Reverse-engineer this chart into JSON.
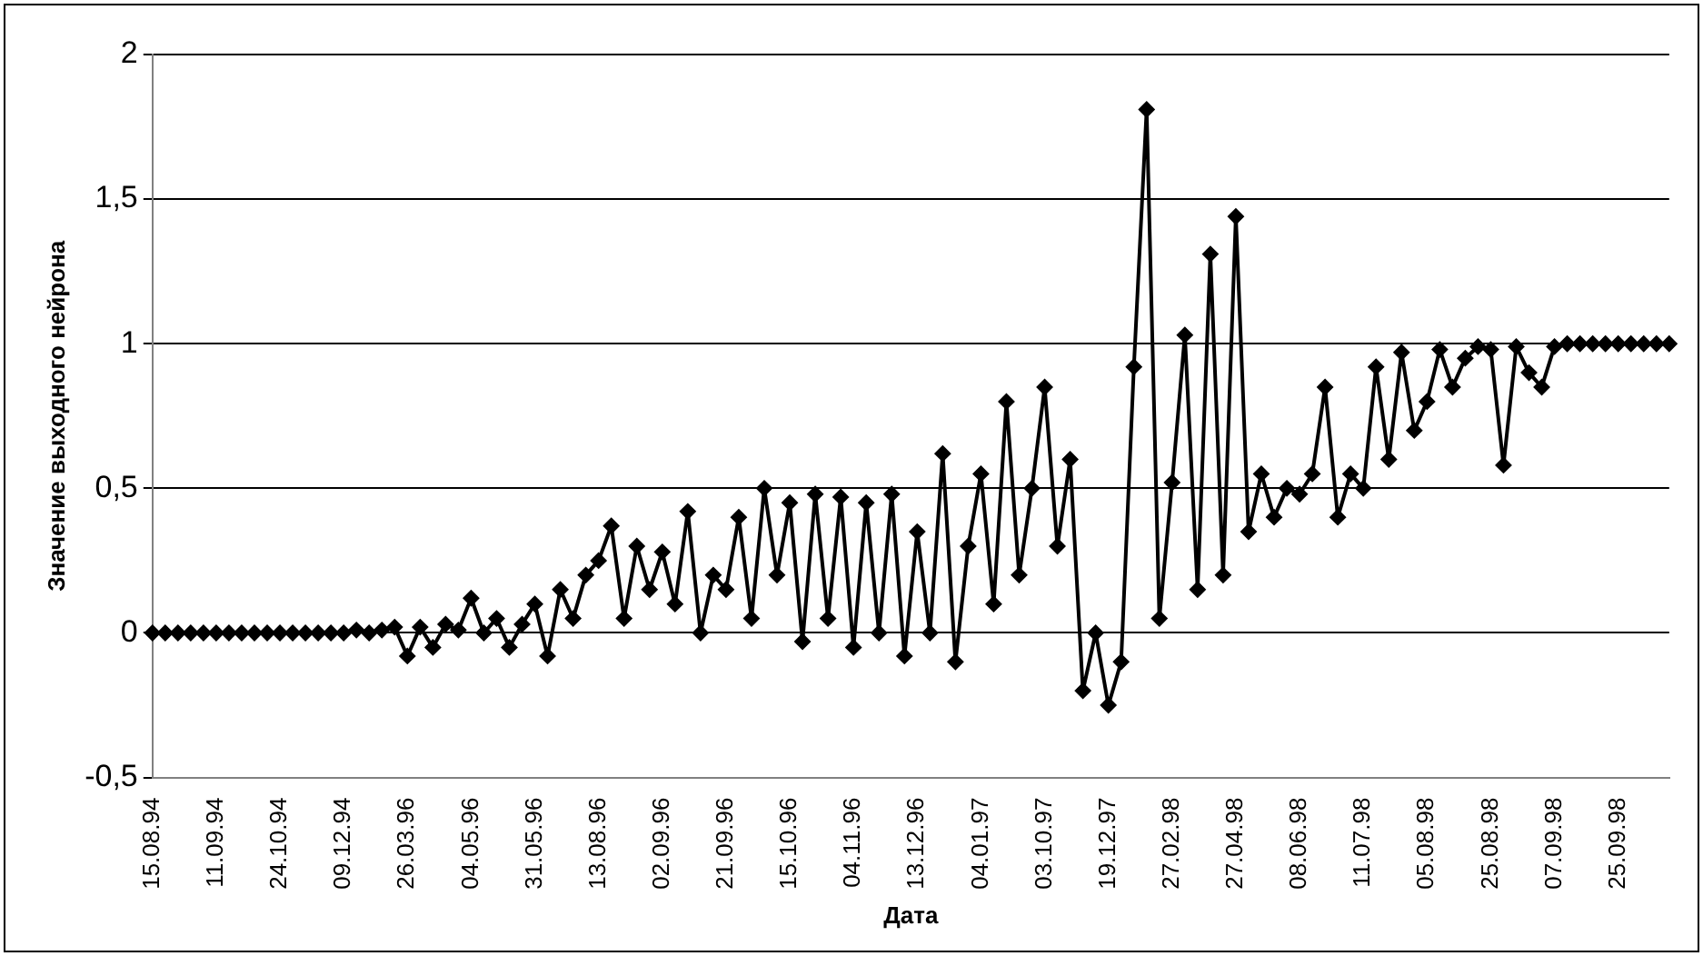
{
  "chart_data": {
    "type": "line",
    "xlabel": "Дата",
    "ylabel": "Значение выходного нейрона",
    "categories": [
      "15.08.94",
      null,
      null,
      null,
      null,
      "11.09.94",
      null,
      null,
      null,
      null,
      "24.10.94",
      null,
      null,
      null,
      null,
      "09.12.94",
      null,
      null,
      null,
      null,
      "26.03.96",
      null,
      null,
      null,
      null,
      "04.05.96",
      null,
      null,
      null,
      null,
      "31.05.96",
      null,
      null,
      null,
      null,
      "13.08.96",
      null,
      null,
      null,
      null,
      "02.09.96",
      null,
      null,
      null,
      null,
      "21.09.96",
      null,
      null,
      null,
      null,
      "15.10.96",
      null,
      null,
      null,
      null,
      "04.11.96",
      null,
      null,
      null,
      null,
      "13.12.96",
      null,
      null,
      null,
      null,
      "04.01.97",
      null,
      null,
      null,
      null,
      "03.10.97",
      null,
      null,
      null,
      null,
      "19.12.97",
      null,
      null,
      null,
      null,
      "27.02.98",
      null,
      null,
      null,
      null,
      "27.04.98",
      null,
      null,
      null,
      null,
      "08.06.98",
      null,
      null,
      null,
      null,
      "11.07.98",
      null,
      null,
      null,
      null,
      "05.08.98",
      null,
      null,
      null,
      null,
      "25.08.98",
      null,
      null,
      null,
      null,
      "07.09.98",
      null,
      null,
      null,
      null,
      "25.09.98",
      null,
      null,
      null,
      null
    ],
    "series": [
      {
        "color": "#000000",
        "values": [
          0,
          0,
          0,
          0,
          0,
          0,
          0,
          0,
          0,
          0,
          0,
          0,
          0,
          0,
          0,
          0,
          0.01,
          0,
          0.01,
          0.02,
          -0.08,
          0.02,
          -0.05,
          0.03,
          0.01,
          0.12,
          0,
          0.05,
          -0.05,
          0.03,
          0.1,
          -0.08,
          0.15,
          0.05,
          0.2,
          0.25,
          0.37,
          0.05,
          0.3,
          0.15,
          0.28,
          0.1,
          0.42,
          0,
          0.2,
          0.15,
          0.4,
          0.05,
          0.5,
          0.2,
          0.45,
          -0.03,
          0.48,
          0.05,
          0.47,
          -0.05,
          0.45,
          0,
          0.48,
          -0.08,
          0.35,
          0,
          0.62,
          -0.1,
          0.3,
          0.55,
          0.1,
          0.8,
          0.2,
          0.5,
          0.85,
          0.3,
          0.6,
          -0.2,
          0,
          -0.25,
          -0.1,
          0.92,
          1.81,
          0.05,
          0.52,
          1.03,
          0.15,
          1.31,
          0.2,
          1.44,
          0.35,
          0.55,
          0.4,
          0.5,
          0.48,
          0.55,
          0.85,
          0.4,
          0.55,
          0.5,
          0.92,
          0.6,
          0.97,
          0.7,
          0.8,
          0.98,
          0.85,
          0.95,
          0.99,
          0.98,
          0.58,
          0.99,
          0.9,
          0.85,
          0.99,
          1,
          1,
          1,
          1,
          1,
          1,
          1,
          1,
          1
        ]
      }
    ],
    "ylim": [
      -0.5,
      2
    ],
    "yticks": [
      {
        "value": -0.5,
        "label": "-0,5"
      },
      0,
      {
        "value": 0.5,
        "label": "0,5"
      },
      1,
      {
        "value": 1.5,
        "label": "1,5"
      },
      2
    ],
    "grid": "y",
    "marker": "diamond",
    "line_style": "solid",
    "legend": false
  }
}
